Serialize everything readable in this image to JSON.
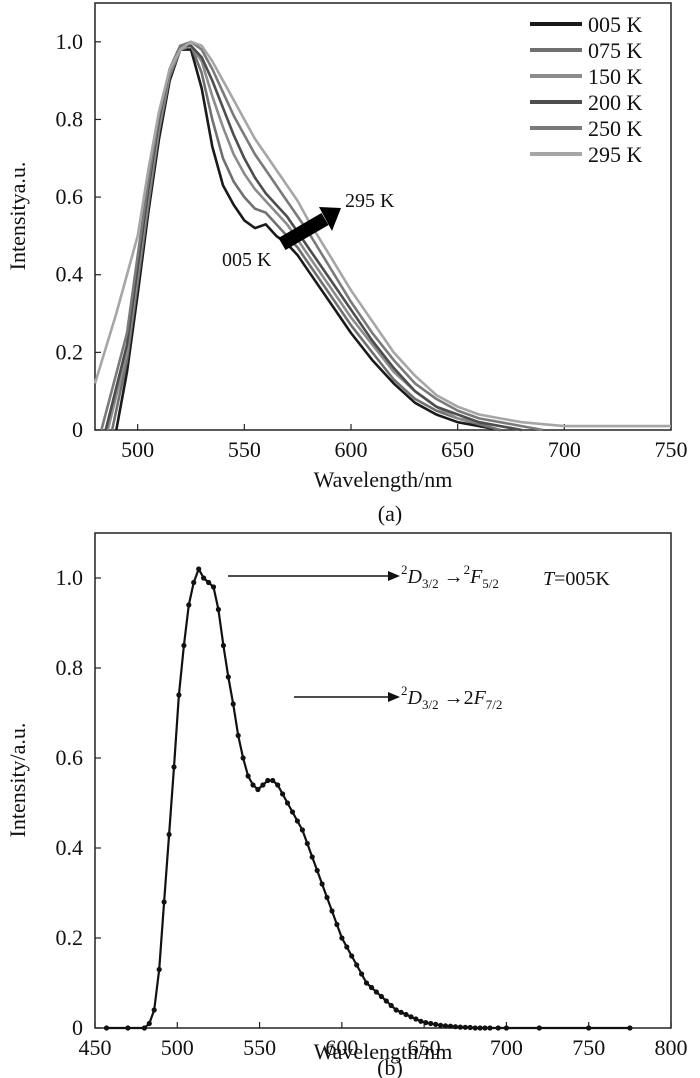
{
  "chart_data": [
    {
      "type": "line",
      "panel_label": "(a)",
      "xlabel": "Wavelength/nm",
      "ylabel": "Intensitya.u.",
      "xlim": [
        480,
        750
      ],
      "ylim": [
        0,
        1.1
      ],
      "x_ticks": [
        {
          "v": 500,
          "label": "500"
        },
        {
          "v": 550,
          "label": "550"
        },
        {
          "v": 600,
          "label": "600"
        },
        {
          "v": 650,
          "label": "650"
        },
        {
          "v": 700,
          "label": "700"
        },
        {
          "v": 750,
          "label": "750"
        }
      ],
      "y_ticks": [
        {
          "v": 0,
          "label": "0"
        },
        {
          "v": 0.2,
          "label": "0.2"
        },
        {
          "v": 0.4,
          "label": "0.4"
        },
        {
          "v": 0.6,
          "label": "0.6"
        },
        {
          "v": 0.8,
          "label": "0.8"
        },
        {
          "v": 1.0,
          "label": "1.0"
        }
      ],
      "legend_position": "top-right",
      "series": [
        {
          "name": "005 K",
          "color": "#1a1a1a",
          "x": [
            490,
            495,
            500,
            505,
            510,
            515,
            520,
            525,
            530,
            535,
            540,
            545,
            550,
            555,
            560,
            565,
            570,
            575,
            580,
            590,
            600,
            610,
            620,
            630,
            640,
            650,
            660,
            670
          ],
          "y": [
            0.0,
            0.15,
            0.35,
            0.56,
            0.75,
            0.9,
            0.98,
            0.98,
            0.88,
            0.73,
            0.63,
            0.58,
            0.54,
            0.52,
            0.53,
            0.5,
            0.48,
            0.45,
            0.41,
            0.33,
            0.25,
            0.18,
            0.12,
            0.07,
            0.04,
            0.02,
            0.01,
            0.0
          ]
        },
        {
          "name": "075 K",
          "color": "#707070",
          "x": [
            488,
            495,
            500,
            505,
            510,
            515,
            520,
            525,
            530,
            535,
            540,
            545,
            550,
            555,
            560,
            565,
            570,
            575,
            580,
            590,
            600,
            610,
            620,
            630,
            640,
            650,
            660,
            670
          ],
          "y": [
            0.0,
            0.18,
            0.38,
            0.58,
            0.77,
            0.91,
            0.98,
            0.99,
            0.92,
            0.8,
            0.7,
            0.64,
            0.6,
            0.57,
            0.56,
            0.53,
            0.5,
            0.47,
            0.43,
            0.35,
            0.27,
            0.2,
            0.13,
            0.08,
            0.05,
            0.03,
            0.015,
            0.0
          ]
        },
        {
          "name": "150 K",
          "color": "#8c8c8c",
          "x": [
            486,
            495,
            500,
            505,
            510,
            515,
            520,
            525,
            530,
            535,
            540,
            545,
            550,
            555,
            560,
            565,
            570,
            575,
            580,
            590,
            600,
            610,
            620,
            630,
            640,
            650,
            660,
            670,
            680
          ],
          "y": [
            0.0,
            0.2,
            0.4,
            0.6,
            0.78,
            0.92,
            0.98,
            0.99,
            0.95,
            0.86,
            0.78,
            0.71,
            0.66,
            0.62,
            0.59,
            0.56,
            0.53,
            0.49,
            0.45,
            0.37,
            0.29,
            0.22,
            0.15,
            0.1,
            0.06,
            0.03,
            0.02,
            0.01,
            0.0
          ]
        },
        {
          "name": "200 K",
          "color": "#4d4d4d",
          "x": [
            485,
            495,
            500,
            505,
            510,
            515,
            520,
            525,
            530,
            535,
            540,
            545,
            550,
            555,
            560,
            565,
            570,
            575,
            580,
            590,
            600,
            610,
            620,
            630,
            640,
            650,
            660,
            670,
            680
          ],
          "y": [
            0.0,
            0.22,
            0.42,
            0.62,
            0.8,
            0.93,
            0.99,
            0.99,
            0.96,
            0.9,
            0.83,
            0.76,
            0.7,
            0.65,
            0.61,
            0.58,
            0.55,
            0.51,
            0.47,
            0.39,
            0.31,
            0.23,
            0.16,
            0.1,
            0.06,
            0.04,
            0.02,
            0.01,
            0.0
          ]
        },
        {
          "name": "250 K",
          "color": "#7a7a7a",
          "x": [
            483,
            495,
            500,
            505,
            510,
            515,
            520,
            525,
            530,
            535,
            540,
            545,
            550,
            555,
            560,
            565,
            570,
            575,
            580,
            590,
            600,
            610,
            620,
            630,
            640,
            650,
            660,
            670,
            680,
            690
          ],
          "y": [
            0.0,
            0.25,
            0.45,
            0.64,
            0.81,
            0.93,
            0.99,
            1.0,
            0.98,
            0.93,
            0.87,
            0.81,
            0.76,
            0.71,
            0.67,
            0.63,
            0.59,
            0.55,
            0.51,
            0.42,
            0.33,
            0.25,
            0.18,
            0.12,
            0.08,
            0.05,
            0.03,
            0.02,
            0.01,
            0.0
          ]
        },
        {
          "name": "295 K",
          "color": "#a6a6a6",
          "x": [
            480,
            490,
            500,
            505,
            510,
            515,
            520,
            525,
            530,
            535,
            540,
            545,
            550,
            555,
            560,
            565,
            570,
            575,
            580,
            590,
            600,
            610,
            620,
            630,
            640,
            650,
            660,
            670,
            680,
            690,
            700,
            720,
            750
          ],
          "y": [
            0.12,
            0.3,
            0.5,
            0.67,
            0.82,
            0.93,
            0.98,
            1.0,
            0.99,
            0.95,
            0.9,
            0.85,
            0.8,
            0.75,
            0.71,
            0.67,
            0.63,
            0.59,
            0.54,
            0.45,
            0.36,
            0.28,
            0.2,
            0.14,
            0.09,
            0.06,
            0.04,
            0.03,
            0.02,
            0.015,
            0.01,
            0.01,
            0.01
          ]
        }
      ],
      "annotations": [
        {
          "text": "005 K",
          "x": 563,
          "y": 0.49
        },
        {
          "text": "295 K",
          "x": 592,
          "y": 0.59
        }
      ]
    },
    {
      "type": "line",
      "panel_label": "(b)",
      "xlabel": "Wavelength/nm",
      "ylabel": "Intensity/a.u.",
      "xlim": [
        450,
        800
      ],
      "ylim": [
        0,
        1.1
      ],
      "x_ticks": [
        {
          "v": 450,
          "label": "450"
        },
        {
          "v": 500,
          "label": "500"
        },
        {
          "v": 550,
          "label": "550"
        },
        {
          "v": 600,
          "label": "600"
        },
        {
          "v": 650,
          "label": "650"
        },
        {
          "v": 700,
          "label": "700"
        },
        {
          "v": 750,
          "label": "750"
        },
        {
          "v": 800,
          "label": "800"
        }
      ],
      "y_ticks": [
        {
          "v": 0,
          "label": "0"
        },
        {
          "v": 0.2,
          "label": "0.2"
        },
        {
          "v": 0.4,
          "label": "0.4"
        },
        {
          "v": 0.6,
          "label": "0.6"
        },
        {
          "v": 0.8,
          "label": "0.8"
        },
        {
          "v": 1.0,
          "label": "1.0"
        }
      ],
      "series": [
        {
          "color": "#111111",
          "x": [
            457,
            470,
            480,
            483,
            486,
            489,
            492,
            495,
            498,
            501,
            504,
            507,
            510,
            513,
            516,
            519,
            522,
            525,
            528,
            531,
            534,
            537,
            540,
            543,
            546,
            549,
            552,
            555,
            558,
            561,
            564,
            567,
            570,
            573,
            576,
            579,
            582,
            585,
            588,
            591,
            594,
            597,
            600,
            603,
            606,
            609,
            612,
            615,
            618,
            621,
            624,
            627,
            630,
            633,
            636,
            639,
            642,
            645,
            648,
            651,
            654,
            657,
            660,
            663,
            666,
            669,
            672,
            675,
            678,
            681,
            684,
            687,
            690,
            695,
            700,
            720,
            750,
            775
          ],
          "y": [
            0.0,
            0.0,
            0.0,
            0.01,
            0.04,
            0.13,
            0.28,
            0.43,
            0.58,
            0.74,
            0.85,
            0.94,
            0.99,
            1.02,
            1.0,
            0.99,
            0.98,
            0.93,
            0.85,
            0.78,
            0.72,
            0.65,
            0.6,
            0.56,
            0.54,
            0.53,
            0.54,
            0.55,
            0.55,
            0.54,
            0.52,
            0.5,
            0.48,
            0.46,
            0.44,
            0.41,
            0.38,
            0.35,
            0.32,
            0.29,
            0.26,
            0.23,
            0.2,
            0.18,
            0.16,
            0.14,
            0.12,
            0.1,
            0.09,
            0.08,
            0.07,
            0.06,
            0.05,
            0.04,
            0.035,
            0.03,
            0.025,
            0.02,
            0.015,
            0.012,
            0.01,
            0.008,
            0.006,
            0.005,
            0.004,
            0.003,
            0.002,
            0.0015,
            0.001,
            0.0,
            0.0,
            0.0,
            0.0,
            0.0,
            0.0,
            0.0,
            0.0,
            0.0
          ]
        }
      ],
      "annotations": [
        {
          "text_html": "<tspan font-size='13' dy='-9'>2</tspan><tspan font-style='italic' dy='9'>D</tspan><tspan font-size='13' dy='5'>3/2</tspan><tspan dy='-5'> →</tspan><tspan font-size='13' dy='-9'>2</tspan><tspan font-style='italic' dy='9'>F</tspan><tspan font-size='13' dy='5'>5/2</tspan>",
          "text": "²D3/2 →²F5/2",
          "arrow_from": [
            528,
            1.0
          ],
          "arrow_to": [
            597,
            1.0
          ]
        },
        {
          "text": "²D3/2 →2F7/2",
          "arrow_from": [
            570,
            0.54
          ],
          "arrow_to": [
            597,
            0.54
          ]
        },
        {
          "text": "T=005K",
          "x": 670,
          "y": 1.0
        }
      ]
    }
  ]
}
